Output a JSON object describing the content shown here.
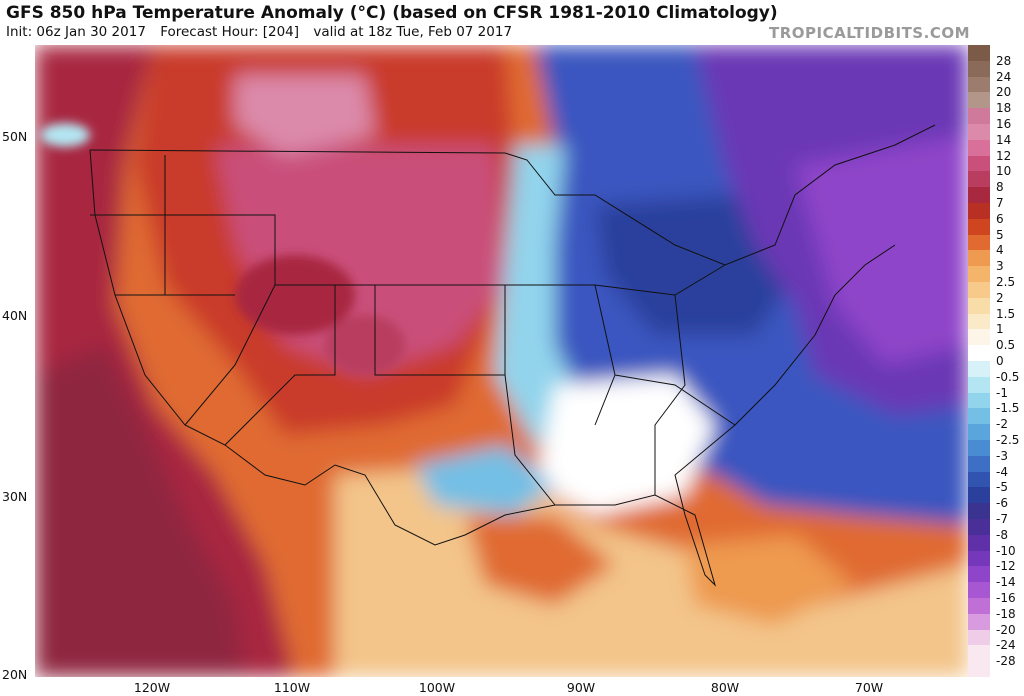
{
  "header": {
    "title": "GFS 850 hPa Temperature Anomaly (°C) (based on CFSR 1981-2010 Climatology)",
    "init": "Init: 06z Jan 30 2017",
    "forecast_hour": "Forecast Hour: [204]",
    "valid": "valid at 18z Tue, Feb 07 2017",
    "credit": "TROPICALTIDBITS.COM"
  },
  "axes": {
    "latitude_labels": [
      "50N",
      "40N",
      "30N",
      "20N"
    ],
    "longitude_labels": [
      "120W",
      "110W",
      "100W",
      "90W",
      "80W",
      "70W"
    ]
  },
  "colorbar": {
    "labels": [
      "28",
      "24",
      "20",
      "18",
      "16",
      "14",
      "12",
      "10",
      "8",
      "7",
      "6",
      "5",
      "4",
      "3",
      "2.5",
      "2",
      "1.5",
      "1",
      "0.5",
      "0",
      "-0.5",
      "-1",
      "-1.5",
      "-2",
      "-2.5",
      "-3",
      "-4",
      "-5",
      "-6",
      "-7",
      "-8",
      "-10",
      "-12",
      "-14",
      "-16",
      "-18",
      "-20",
      "-24",
      "-28"
    ],
    "colors": [
      "#7b5a48",
      "#8a6a58",
      "#9c7d6d",
      "#b2968a",
      "#cf7a9a",
      "#dc8aaa",
      "#d9709a",
      "#c9507a",
      "#b83d5e",
      "#a8283f",
      "#b83024",
      "#cf4520",
      "#e06a30",
      "#ee9a50",
      "#f4b46a",
      "#f7c98a",
      "#f9dda8",
      "#fbeac8",
      "#fdf6e8",
      "#ffffff",
      "#d6f2f8",
      "#b3e6f2",
      "#92d4ec",
      "#73bfe5",
      "#5aa6dc",
      "#4a8cd2",
      "#3d6fc4",
      "#3154b0",
      "#2b3f9c",
      "#3a3490",
      "#4a2f99",
      "#5f30a8",
      "#7638bb",
      "#8f45c9",
      "#a757d2",
      "#bf6fd6",
      "#d89be0",
      "#efcde9",
      "#fae8f0"
    ]
  },
  "colors": {
    "ocean_pacific": "#9a2c45",
    "warm_west": "#d24a26",
    "cold_northeast": "#6a37b5",
    "cold_east": "#3a56c0",
    "neutral_south": "#ffffff",
    "gulf_warm": "#f3c58a"
  }
}
